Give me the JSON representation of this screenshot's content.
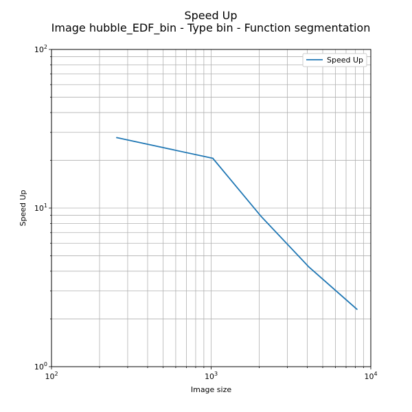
{
  "chart_data": {
    "type": "line",
    "title": "Speed Up",
    "subtitle": "Image hubble_EDF_bin - Type bin - Function segmentation",
    "xlabel": "Image size",
    "ylabel": "Speed Up",
    "xscale": "log",
    "yscale": "log",
    "xlim": [
      100,
      10000
    ],
    "ylim": [
      1,
      100
    ],
    "grid": true,
    "grid_which": "both",
    "legend_position": "top-right",
    "x_tick_labels": [
      {
        "value": 100,
        "base": "10",
        "exp": "2"
      },
      {
        "value": 1000,
        "base": "10",
        "exp": "3"
      },
      {
        "value": 10000,
        "base": "10",
        "exp": "4"
      }
    ],
    "y_tick_labels": [
      {
        "value": 1,
        "base": "10",
        "exp": "0"
      },
      {
        "value": 10,
        "base": "10",
        "exp": "1"
      },
      {
        "value": 100,
        "base": "10",
        "exp": "2"
      }
    ],
    "series": [
      {
        "name": "Speed Up",
        "color": "#1f77b4",
        "x": [
          256,
          1024,
          2048,
          4096,
          8192
        ],
        "y": [
          27.8,
          20.6,
          8.9,
          4.25,
          2.3
        ]
      }
    ]
  }
}
